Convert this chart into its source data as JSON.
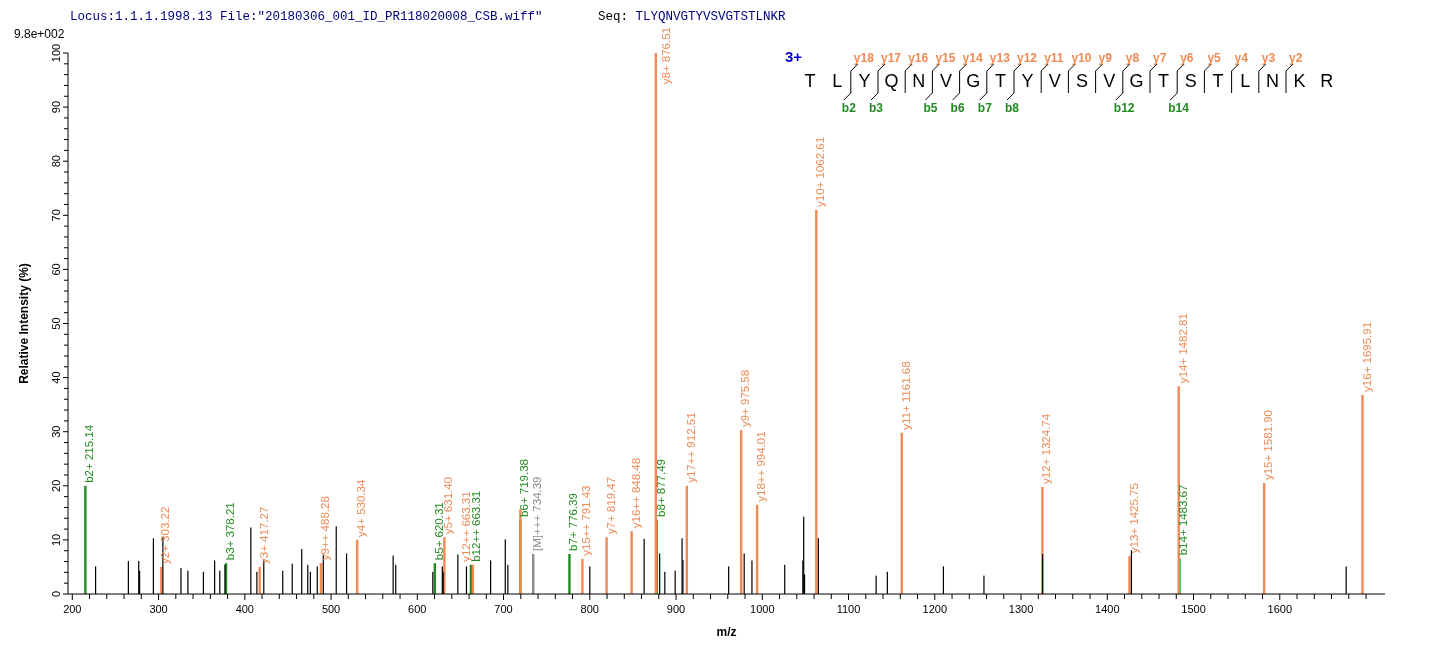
{
  "chart_data": {
    "type": "bar",
    "xlabel": "m/z",
    "ylabel": "Relative Intensity (%)",
    "annotations": [
      "Locus:1.1.1.1998.13 File:\"20180306_001_ID_PR118020008_CSB.wiff\"",
      "Seq: TLYQNVGTYVSVGTSTLNKR",
      "9.8e+002",
      "3+",
      "T L Y Q N V G T Y V S V G T S T L N K R",
      "y18 y17 y16 y15 y14 y13 y12 y11 y10 y9 y8 y7 y6 y5 y4 y3 y2",
      "b2 b3 b5 b6 b7 b8 b12 b14",
      {
        "text": "[M]+++ 734.39",
        "x": 734.39,
        "y": 7.4
      }
    ],
    "xlim": [
      195,
      1722
    ],
    "ylim": [
      0,
      100
    ],
    "xticks": [
      200,
      {
        "value": 220,
        "label": null
      },
      {
        "value": 240,
        "label": null
      },
      {
        "value": 260,
        "label": null
      },
      {
        "value": 280,
        "label": null
      },
      300,
      {
        "value": 320,
        "label": null
      },
      {
        "value": 340,
        "label": null
      },
      {
        "value": 360,
        "label": null
      },
      {
        "value": 380,
        "label": null
      },
      400,
      {
        "value": 420,
        "label": null
      },
      {
        "value": 440,
        "label": null
      },
      {
        "value": 460,
        "label": null
      },
      {
        "value": 480,
        "label": null
      },
      500,
      {
        "value": 520,
        "label": null
      },
      {
        "value": 540,
        "label": null
      },
      {
        "value": 560,
        "label": null
      },
      {
        "value": 580,
        "label": null
      },
      600,
      {
        "value": 620,
        "label": null
      },
      {
        "value": 640,
        "label": null
      },
      {
        "value": 660,
        "label": null
      },
      {
        "value": 680,
        "label": null
      },
      700,
      {
        "value": 720,
        "label": null
      },
      {
        "value": 740,
        "label": null
      },
      {
        "value": 760,
        "label": null
      },
      {
        "value": 780,
        "label": null
      },
      800,
      {
        "value": 820,
        "label": null
      },
      {
        "value": 840,
        "label": null
      },
      {
        "value": 860,
        "label": null
      },
      {
        "value": 880,
        "label": null
      },
      900,
      {
        "value": 920,
        "label": null
      },
      {
        "value": 940,
        "label": null
      },
      {
        "value": 960,
        "label": null
      },
      {
        "value": 980,
        "label": null
      },
      1000,
      {
        "value": 1020,
        "label": null
      },
      {
        "value": 1040,
        "label": null
      },
      {
        "value": 1060,
        "label": null
      },
      {
        "value": 1080,
        "label": null
      },
      1100,
      {
        "value": 1120,
        "label": null
      },
      {
        "value": 1140,
        "label": null
      },
      {
        "value": 1160,
        "label": null
      },
      {
        "value": 1180,
        "label": null
      },
      1200,
      {
        "value": 1220,
        "label": null
      },
      {
        "value": 1240,
        "label": null
      },
      {
        "value": 1260,
        "label": null
      },
      {
        "value": 1280,
        "label": null
      },
      1300,
      {
        "value": 1320,
        "label": null
      },
      {
        "value": 1340,
        "label": null
      },
      {
        "value": 1360,
        "label": null
      },
      {
        "value": 1380,
        "label": null
      },
      1400,
      {
        "value": 1420,
        "label": null
      },
      {
        "value": 1440,
        "label": null
      },
      {
        "value": 1460,
        "label": null
      },
      {
        "value": 1480,
        "label": null
      },
      1500,
      {
        "value": 1520,
        "label": null
      },
      {
        "value": 1540,
        "label": null
      },
      {
        "value": 1560,
        "label": null
      },
      {
        "value": 1580,
        "label": null
      },
      1600,
      {
        "value": 1620,
        "label": null
      },
      {
        "value": 1640,
        "label": null
      },
      {
        "value": 1660,
        "label": null
      },
      {
        "value": 1680,
        "label": null
      },
      {
        "value": 1700,
        "label": null
      }
    ],
    "yticks": [
      0,
      {
        "value": 2,
        "label": null
      },
      {
        "value": 4,
        "label": null
      },
      {
        "value": 6,
        "label": null
      },
      {
        "value": 8,
        "label": null
      },
      10,
      {
        "value": 12,
        "label": null
      },
      {
        "value": 14,
        "label": null
      },
      {
        "value": 16,
        "label": null
      },
      {
        "value": 18,
        "label": null
      },
      20,
      {
        "value": 22,
        "label": null
      },
      {
        "value": 24,
        "label": null
      },
      {
        "value": 26,
        "label": null
      },
      {
        "value": 28,
        "label": null
      },
      30,
      {
        "value": 32,
        "label": null
      },
      {
        "value": 34,
        "label": null
      },
      {
        "value": 36,
        "label": null
      },
      {
        "value": 38,
        "label": null
      },
      40,
      {
        "value": 42,
        "label": null
      },
      {
        "value": 44,
        "label": null
      },
      {
        "value": 46,
        "label": null
      },
      {
        "value": 48,
        "label": null
      },
      50,
      {
        "value": 52,
        "label": null
      },
      {
        "value": 54,
        "label": null
      },
      {
        "value": 56,
        "label": null
      },
      {
        "value": 58,
        "label": null
      },
      60,
      {
        "value": 62,
        "label": null
      },
      {
        "value": 64,
        "label": null
      },
      {
        "value": 66,
        "label": null
      },
      {
        "value": 68,
        "label": null
      },
      70,
      {
        "value": 72,
        "label": null
      },
      {
        "value": 74,
        "label": null
      },
      {
        "value": 76,
        "label": null
      },
      {
        "value": 78,
        "label": null
      },
      80,
      {
        "value": 82,
        "label": null
      },
      {
        "value": 84,
        "label": null
      },
      {
        "value": 86,
        "label": null
      },
      {
        "value": 88,
        "label": null
      },
      90,
      {
        "value": 92,
        "label": null
      },
      {
        "value": 94,
        "label": null
      },
      {
        "value": 96,
        "label": null
      },
      {
        "value": 98,
        "label": null
      },
      100
    ],
    "series": [
      {
        "color": "#000000",
        "x": [
          227,
          265,
          277,
          278,
          294,
          305,
          326,
          334,
          352,
          365,
          371,
          377,
          407,
          414,
          422,
          444,
          455,
          466,
          473,
          476,
          484,
          491,
          506,
          518,
          572,
          575,
          618,
          629,
          630,
          647,
          657,
          685,
          702,
          705,
          800,
          863,
          881,
          887,
          899,
          907,
          908,
          961,
          979,
          988,
          1026,
          1047,
          1048,
          1049,
          1065,
          1132,
          1145,
          1210,
          1257,
          1325,
          1428,
          1677
        ],
        "values": [
          5.1,
          6.1,
          6.1,
          4.3,
          10.3,
          10.6,
          4.8,
          4.3,
          4.1,
          6.2,
          4.3,
          5.4,
          12.3,
          4.1,
          6.2,
          4.3,
          5.6,
          8.3,
          5.4,
          4.1,
          5.1,
          7.3,
          12.5,
          7.5,
          7.1,
          5.4,
          4.1,
          5.1,
          4.1,
          7.3,
          5.1,
          6.2,
          10.1,
          5.4,
          5.1,
          10.2,
          7.5,
          4.1,
          4.3,
          10.3,
          6.3,
          5.1,
          7.5,
          6.2,
          5.4,
          6.2,
          14.3,
          3.6,
          10.3,
          3.4,
          4.1,
          5.1,
          3.4,
          7.4,
          8.1,
          5.1
        ]
      },
      {
        "color": "#218c21",
        "x": [
          215.14,
          378.21,
          620.31,
          663.31,
          719.38,
          776.39,
          877.49,
          1483.67
        ],
        "values": [
          20.0,
          5.7,
          5.7,
          5.4,
          13.7,
          7.4,
          13.7,
          6.6
        ],
        "value_labels": [
          "b2+ 215.14",
          "b3+ 378.21",
          "b5+ 620.31",
          "b12++ 663.31",
          "b6+ 719.38",
          "b7+ 776.39",
          "b8+ 877.49",
          "b14+ 1483.67"
        ]
      },
      {
        "color": "#8c8c8c",
        "x": [
          734.39
        ],
        "values": [
          7.4
        ]
      },
      {
        "color": "#ef8a55",
        "x": [
          303.22,
          417.27,
          488.28,
          530.34,
          631.4,
          663.31,
          719.5,
          791.43,
          819.47,
          848.48,
          876.51,
          912.51,
          975.58,
          994.01,
          1062.61,
          1161.68,
          1324.74,
          1425.75,
          1482.81,
          1581.9,
          1695.91
        ],
        "values": [
          5.0,
          5.0,
          5.7,
          10.0,
          10.5,
          5.4,
          15.7,
          6.5,
          10.5,
          11.6,
          100,
          20.0,
          30.3,
          16.5,
          71.0,
          29.8,
          19.8,
          7.0,
          38.4,
          20.5,
          36.8
        ],
        "value_labels": [
          "y2+ 303.22",
          "y3+ 417.27",
          "y9++ 488.28",
          "y4+ 530.34",
          "y5+ 631.40",
          "y12++ 663.31",
          null,
          "y15++ 791.43",
          "y7+ 819.47",
          "y16++ 848.48",
          "y8+ 876.51",
          "y17++ 912.51",
          "y9+ 975.58",
          "y18++ 994.01",
          "y10+ 1062.61",
          "y11+ 1161.68",
          "y12+ 1324.74",
          "y13+ 1425.75",
          "y14+ 1482.81",
          "y15+ 1581.90",
          "y16+ 1695.91"
        ]
      }
    ]
  }
}
